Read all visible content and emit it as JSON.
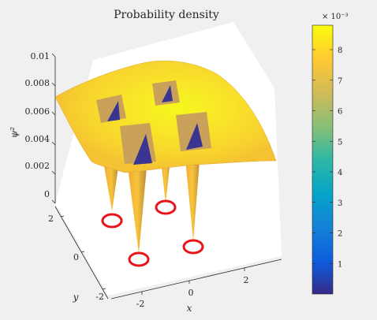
{
  "window": {
    "title": "Probability density"
  },
  "chart_data": {
    "type": "surface",
    "title": "Probability density",
    "xlabel": "x",
    "ylabel": "y",
    "zlabel": "ψ²",
    "x_ticks": [
      "-2",
      "0",
      "2"
    ],
    "y_ticks": [
      "-2",
      "0",
      "2"
    ],
    "z_ticks": [
      "0",
      "0.002",
      "0.004",
      "0.006",
      "0.008",
      "0.01"
    ],
    "zlim": [
      0,
      0.01
    ],
    "grid": false,
    "surface": {
      "plateau_density": 0.0075,
      "peak_density": 0.0088,
      "nodes": [
        {
          "x": -1,
          "y": -1,
          "density": 0
        },
        {
          "x": 1,
          "y": -1,
          "density": 0
        },
        {
          "x": -1,
          "y": 1,
          "density": 0
        },
        {
          "x": 1,
          "y": 1,
          "density": 0
        }
      ]
    },
    "markers": {
      "shape": "circle",
      "color": "#e8141a",
      "count": 4
    },
    "colorbar": {
      "colormap": "parula",
      "limits": [
        0,
        0.0088
      ],
      "ticks": [
        "1",
        "2",
        "3",
        "4",
        "5",
        "6",
        "7",
        "8"
      ],
      "exponent_label": "× 10⁻³"
    }
  }
}
